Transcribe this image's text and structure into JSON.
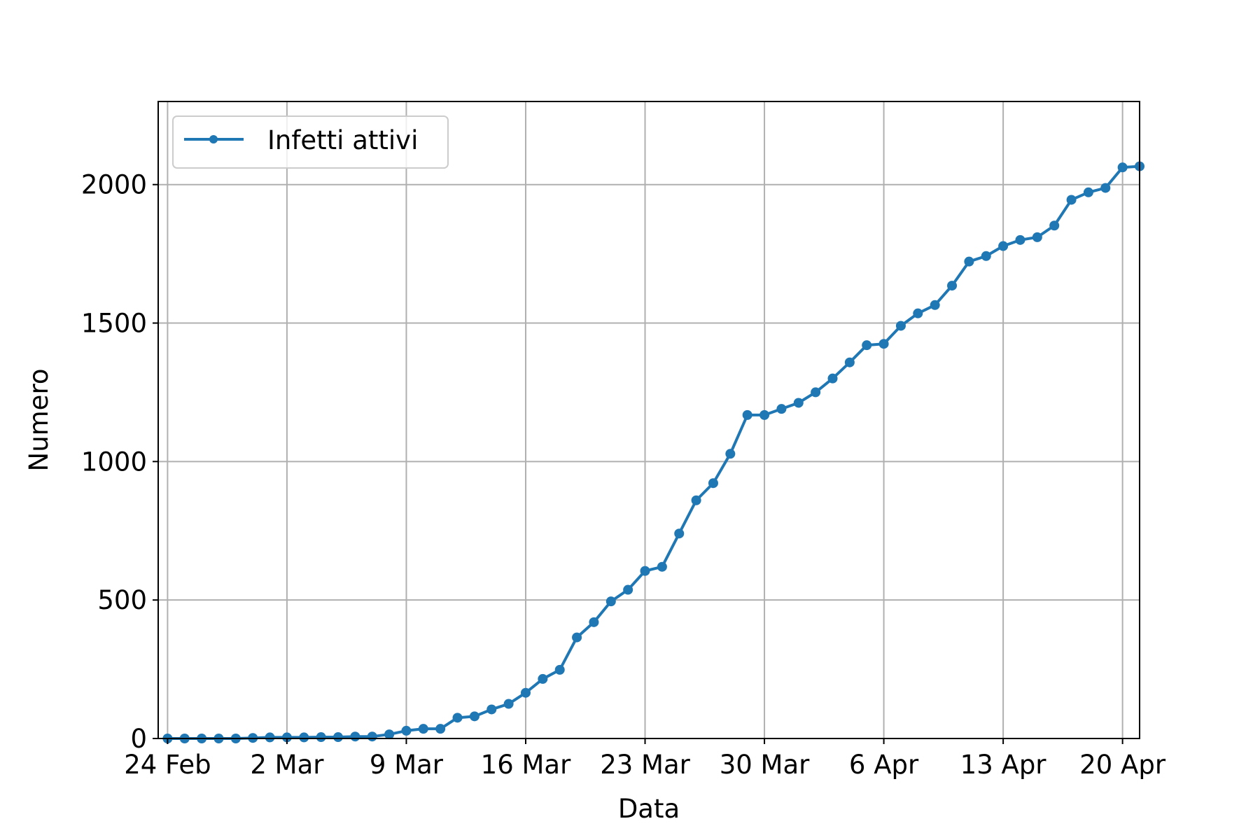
{
  "chart_data": {
    "type": "line",
    "title": "",
    "xlabel": "Data",
    "ylabel": "Numero",
    "grid": true,
    "legend_position": "upper-left",
    "x_start_date": "2020-02-24",
    "xlim_days": [
      -0.55,
      57.0
    ],
    "ylim": [
      0,
      2300
    ],
    "x_ticks": [
      {
        "day": 0,
        "label": "24 Feb"
      },
      {
        "day": 7,
        "label": "2 Mar"
      },
      {
        "day": 14,
        "label": "9 Mar"
      },
      {
        "day": 21,
        "label": "16 Mar"
      },
      {
        "day": 28,
        "label": "23 Mar"
      },
      {
        "day": 35,
        "label": "30 Mar"
      },
      {
        "day": 42,
        "label": "6 Apr"
      },
      {
        "day": 49,
        "label": "13 Apr"
      },
      {
        "day": 56,
        "label": "20 Apr"
      }
    ],
    "y_ticks": [
      {
        "value": 0,
        "label": "0"
      },
      {
        "value": 500,
        "label": "500"
      },
      {
        "value": 1000,
        "label": "1000"
      },
      {
        "value": 1500,
        "label": "1500"
      },
      {
        "value": 2000,
        "label": "2000"
      }
    ],
    "series": [
      {
        "name": "Infetti attivi",
        "color": "#1f77b4",
        "values": [
          0,
          0,
          0,
          0,
          0,
          2,
          4,
          4,
          4,
          5,
          5,
          7,
          7,
          15,
          28,
          35,
          35,
          75,
          80,
          105,
          125,
          165,
          215,
          248,
          365,
          420,
          495,
          537,
          605,
          620,
          740,
          860,
          922,
          1028,
          1168,
          1168,
          1190,
          1212,
          1250,
          1300,
          1358,
          1420,
          1425,
          1490,
          1535,
          1565,
          1635,
          1722,
          1742,
          1778,
          1800,
          1810,
          1852,
          1945,
          1972,
          1988,
          2062,
          2066
        ]
      }
    ]
  }
}
